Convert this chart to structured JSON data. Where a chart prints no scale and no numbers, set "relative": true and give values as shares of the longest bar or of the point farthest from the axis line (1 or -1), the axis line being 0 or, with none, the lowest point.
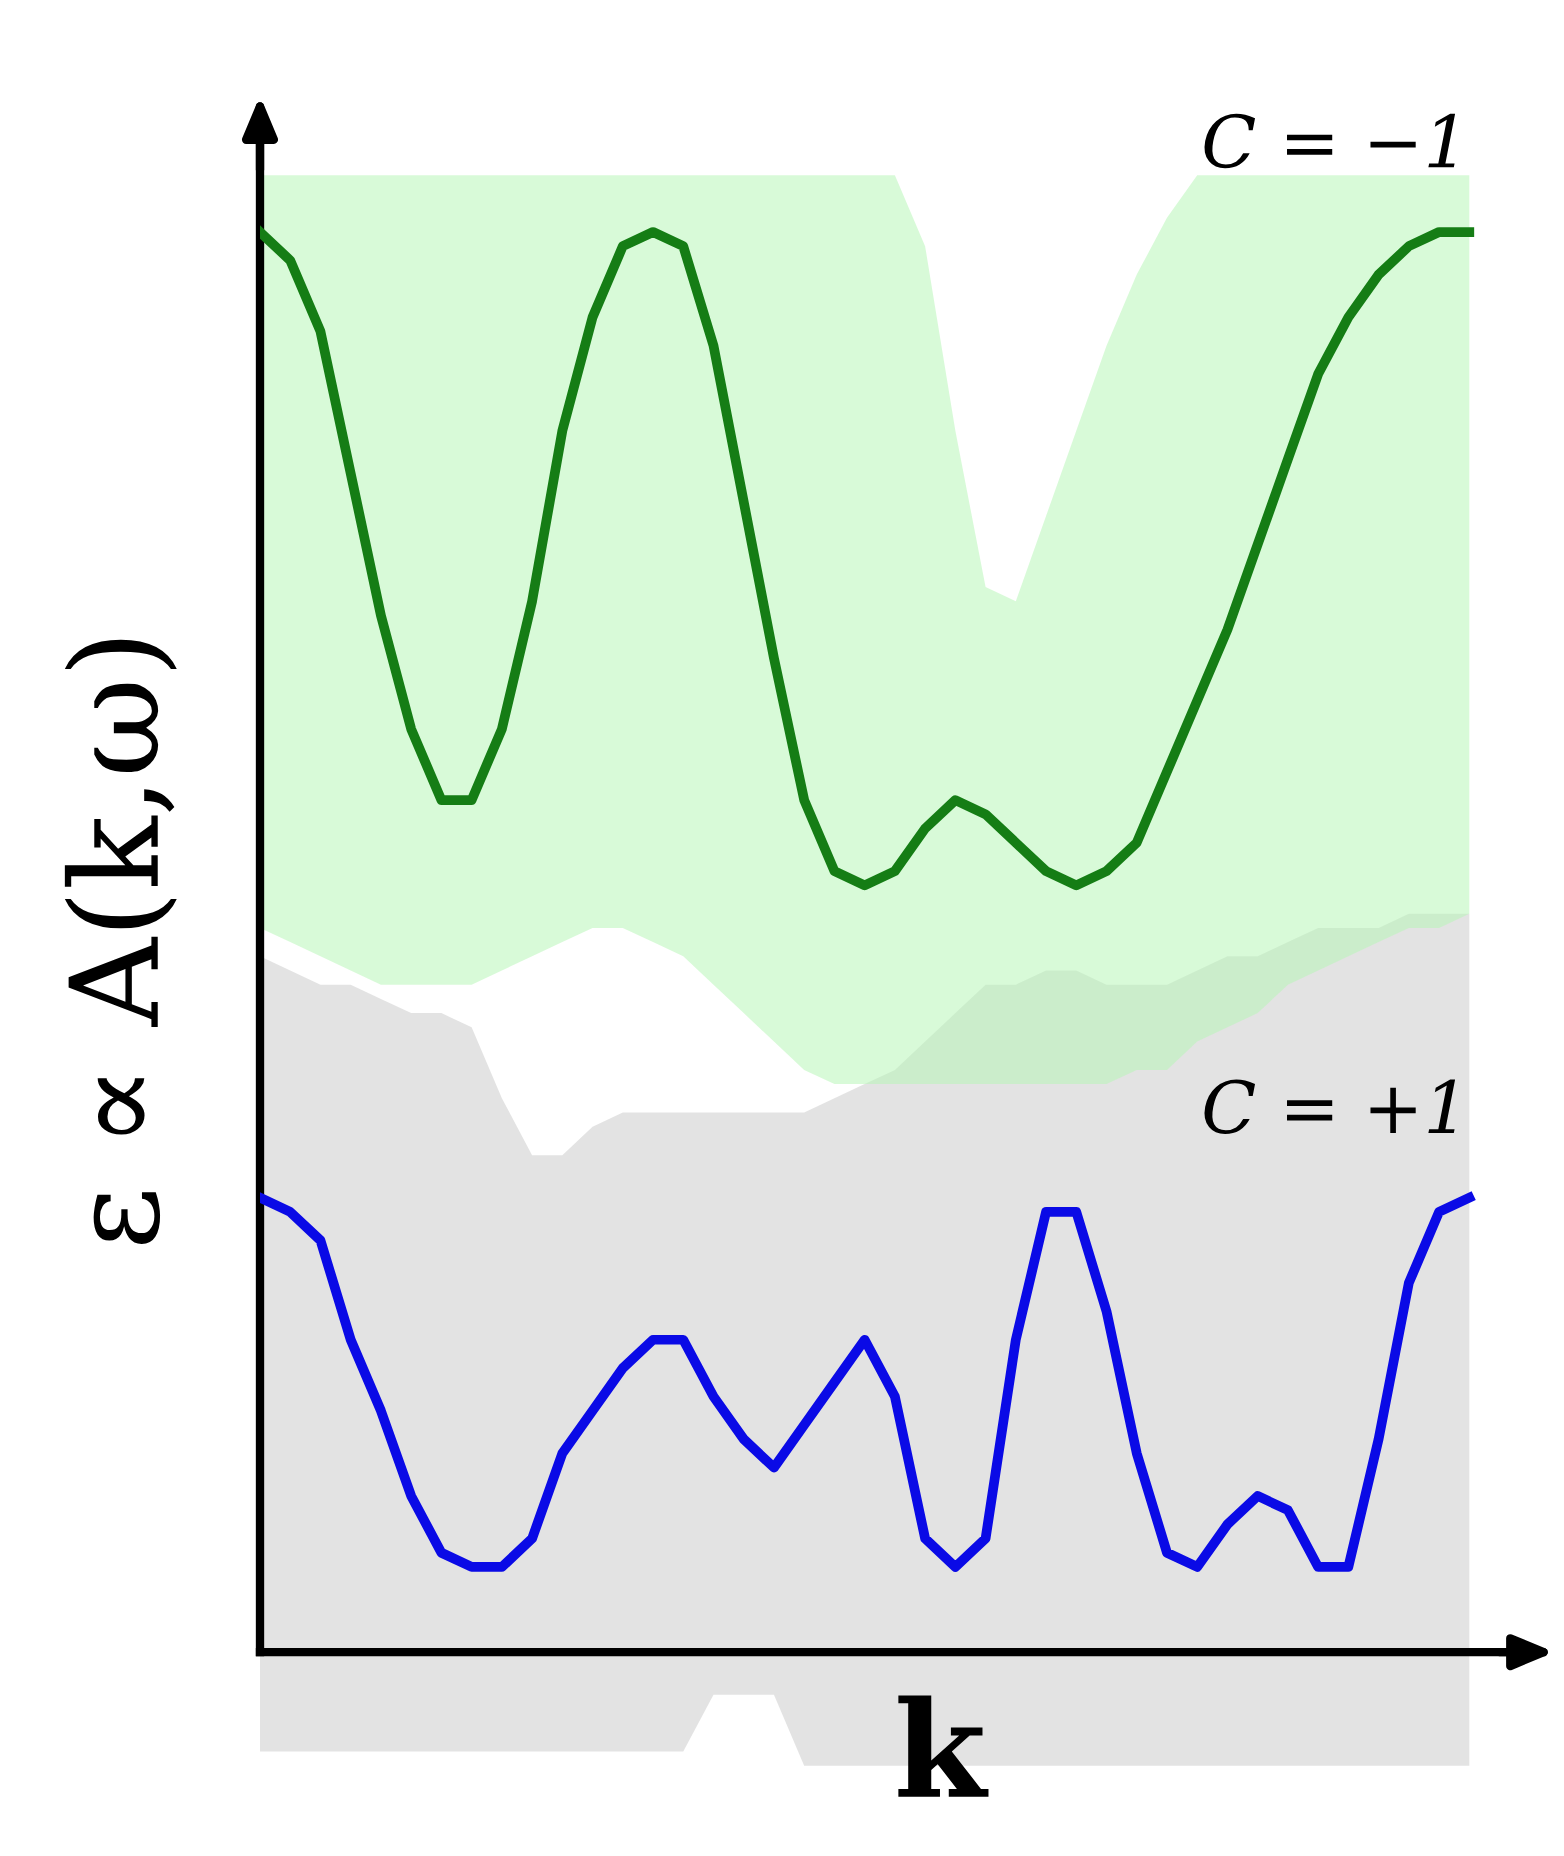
{
  "chart_data": {
    "type": "line",
    "relative": true,
    "xlabel": "k",
    "ylabel": "ε ∝ A(k,ω)",
    "legend": false,
    "marker": "none",
    "line_style": "solid",
    "categories": [
      null,
      null,
      null,
      null,
      null,
      null,
      null,
      null,
      null,
      null,
      null,
      null,
      null,
      null,
      null,
      null,
      null,
      null,
      null,
      null,
      null,
      null,
      null,
      null,
      null,
      null,
      null,
      null,
      null,
      null,
      null,
      null,
      null,
      null,
      null,
      null,
      null,
      null,
      null,
      null,
      null
    ],
    "series": [
      {
        "name": "C = −1",
        "color": "#157d15",
        "values": [
          1.0,
          0.98,
          0.93,
          0.83,
          0.73,
          0.65,
          0.6,
          0.6,
          0.65,
          0.74,
          0.86,
          0.94,
          0.99,
          1.0,
          0.99,
          0.92,
          0.81,
          0.7,
          0.6,
          0.55,
          0.54,
          0.55,
          0.58,
          0.6,
          0.59,
          0.57,
          0.55,
          0.54,
          0.55,
          0.57,
          0.62,
          0.67,
          0.72,
          0.78,
          0.84,
          0.9,
          0.94,
          0.97,
          0.99,
          1.0,
          1.0
        ],
        "lower": [
          0.51,
          0.5,
          0.49,
          0.48,
          0.47,
          0.47,
          0.47,
          0.47,
          0.48,
          0.49,
          0.5,
          0.51,
          0.51,
          0.5,
          0.49,
          0.47,
          0.45,
          0.43,
          0.41,
          0.4,
          0.4,
          0.4,
          0.4,
          0.4,
          0.4,
          0.4,
          0.4,
          0.4,
          0.4,
          0.41,
          0.41,
          0.43,
          0.44,
          0.45,
          0.47,
          0.48,
          0.49,
          0.5,
          0.51,
          0.51,
          0.52
        ],
        "upper": [
          1.04,
          1.04,
          1.04,
          1.04,
          1.04,
          1.04,
          1.04,
          1.04,
          1.04,
          1.04,
          1.04,
          1.04,
          1.04,
          1.04,
          1.04,
          1.04,
          1.04,
          1.04,
          1.04,
          1.04,
          1.04,
          1.04,
          0.99,
          0.86,
          0.75,
          0.74,
          0.8,
          0.86,
          0.92,
          0.97,
          1.01,
          1.04,
          1.04,
          1.04,
          1.04,
          1.04,
          1.04,
          1.04,
          1.04,
          1.04,
          1.04
        ]
      },
      {
        "name": "C = +1",
        "color": "#0a0ae6",
        "values": [
          0.32,
          0.31,
          0.29,
          0.22,
          0.17,
          0.11,
          0.07,
          0.06,
          0.06,
          0.08,
          0.14,
          0.17,
          0.2,
          0.22,
          0.22,
          0.18,
          0.15,
          0.13,
          0.16,
          0.19,
          0.22,
          0.18,
          0.08,
          0.06,
          0.08,
          0.22,
          0.31,
          0.31,
          0.24,
          0.14,
          0.07,
          0.06,
          0.09,
          0.11,
          0.1,
          0.06,
          0.06,
          0.15,
          0.26,
          0.31,
          0.32
        ],
        "lower": [
          -0.07,
          -0.07,
          -0.07,
          -0.07,
          -0.07,
          -0.07,
          -0.07,
          -0.07,
          -0.07,
          -0.07,
          -0.07,
          -0.07,
          -0.07,
          -0.07,
          -0.07,
          -0.03,
          -0.03,
          -0.03,
          -0.08,
          -0.08,
          -0.08,
          -0.08,
          -0.08,
          -0.08,
          -0.08,
          -0.08,
          -0.08,
          -0.08,
          -0.08,
          -0.08,
          -0.08,
          -0.08,
          -0.08,
          -0.08,
          -0.08,
          -0.08,
          -0.08,
          -0.08,
          -0.08,
          -0.08,
          -0.08
        ],
        "upper": [
          0.49,
          0.48,
          0.47,
          0.47,
          0.46,
          0.45,
          0.45,
          0.44,
          0.39,
          0.35,
          0.35,
          0.37,
          0.38,
          0.38,
          0.38,
          0.38,
          0.38,
          0.38,
          0.38,
          0.39,
          0.4,
          0.41,
          0.43,
          0.45,
          0.47,
          0.47,
          0.48,
          0.48,
          0.47,
          0.47,
          0.47,
          0.48,
          0.49,
          0.49,
          0.5,
          0.51,
          0.51,
          0.51,
          0.52,
          0.52,
          0.52
        ]
      }
    ]
  }
}
